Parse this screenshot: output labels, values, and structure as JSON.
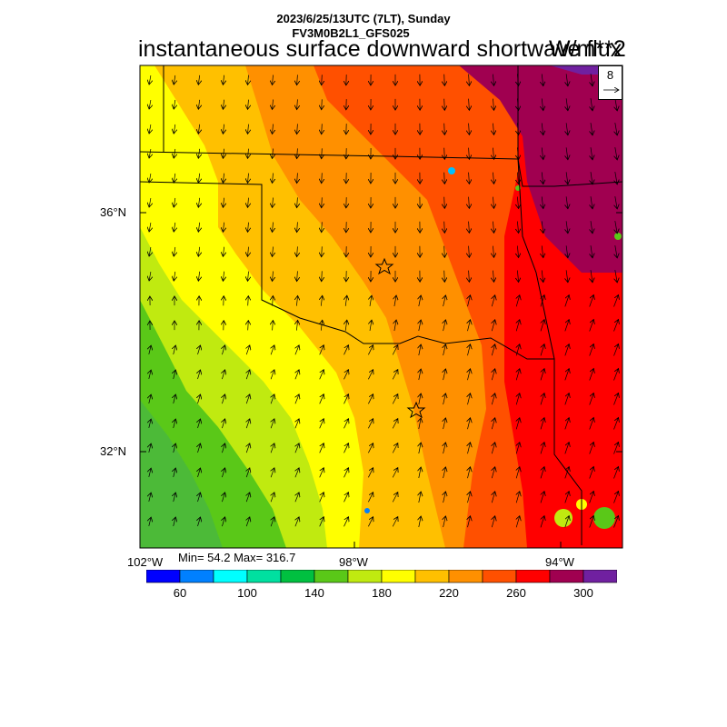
{
  "header": {
    "datetime": "2023/6/25/13UTC (7LT), Sunday",
    "model": "FV3M0B2L1_GFS025",
    "title": "instantaneous surface downward shortwave flux",
    "units": "W/m**2"
  },
  "stats": {
    "text": "Min= 54.2 Max= 316.7"
  },
  "axes": {
    "lon_labels": [
      {
        "text": "102°W",
        "left": 140
      },
      {
        "text": "98°W",
        "left": 373
      },
      {
        "text": "94°W",
        "left": 600
      }
    ],
    "lat_labels": [
      {
        "text": "36°N",
        "top": 226
      },
      {
        "text": "32°N",
        "top": 489
      }
    ]
  },
  "vector_reference": {
    "value": "8"
  },
  "colorbar": {
    "colors": [
      "#0000ff",
      "#0080ff",
      "#00ffff",
      "#00e0a0",
      "#00c040",
      "#5ac818",
      "#c0ea10",
      "#ffff00",
      "#ffc000",
      "#ff9000",
      "#ff5000",
      "#ff0000",
      "#a00050",
      "#7020a0"
    ],
    "labels": [
      "60",
      "100",
      "140",
      "180",
      "220",
      "260",
      "300"
    ]
  },
  "field": {
    "band_colors": [
      "#5ac818",
      "#c0ea10",
      "#ffff00",
      "#ffc000",
      "#ff9000",
      "#ff5000",
      "#ff0000",
      "#a00050"
    ]
  },
  "markers": [
    "star",
    "star"
  ]
}
